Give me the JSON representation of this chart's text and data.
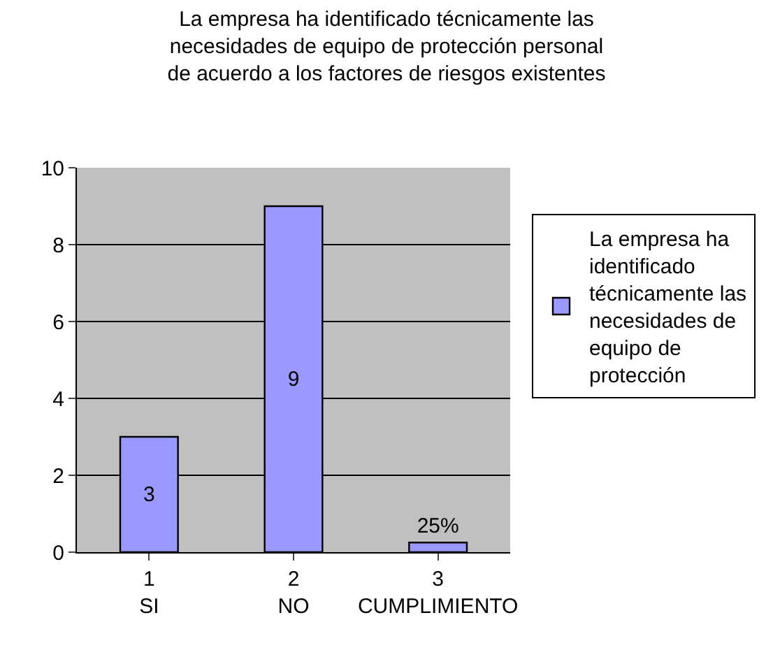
{
  "chart_data": {
    "type": "bar",
    "title": "La empresa ha identificado técnicamente las\nnecesidades de equipo de protección personal\nde acuerdo a los factores de riesgos existentes",
    "categories": [
      "1\nSI",
      "2\nNO",
      "3\nCUMPLIMIENTO"
    ],
    "series": [
      {
        "name": "La empresa ha\nidentificado\ntécnicamente las\nnecesidades de\nequipo de\nprotección",
        "color": "#9999ff",
        "values": [
          3,
          9,
          0.25
        ],
        "value_labels": [
          "3",
          "9",
          "25%"
        ]
      }
    ],
    "ylim": [
      0,
      10
    ],
    "yticks": [
      0,
      2,
      4,
      6,
      8,
      10
    ],
    "grid": "y",
    "legend": "right"
  }
}
